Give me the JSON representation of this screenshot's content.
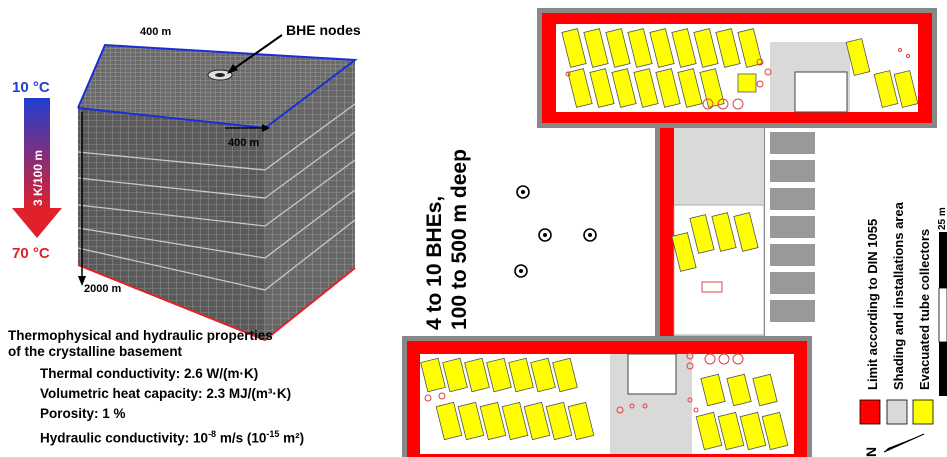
{
  "cube": {
    "top_width_label": "400 m",
    "side_width_label": "400 m",
    "depth_label": "2000 m",
    "bhe_label": "BHE nodes"
  },
  "gradient": {
    "top_temp": "10 °C",
    "bottom_temp": "70 °C",
    "rate": "3 K/100 m",
    "top_color": "#1f3fd0",
    "bottom_color": "#e0202a"
  },
  "properties": {
    "heading_line1": "Thermophysical and hydraulic properties",
    "heading_line2": "of the crystalline basement",
    "items": [
      {
        "label": "Thermal conductivity: ",
        "value": "2.6 W/(m·K)"
      },
      {
        "label": "Volumetric heat capacity: ",
        "value": "2.3 MJ/(m³·K)"
      },
      {
        "label": "Porosity: ",
        "value": "1 %"
      }
    ],
    "hydraulic": {
      "label": "Hydraulic conductivity: ",
      "v1": "10",
      "e1": "-8",
      "u1": " m/s (10",
      "e2": "-15",
      "u2": " m²)"
    }
  },
  "bhe_text": {
    "line1": "4 to 10 BHEs,",
    "line2": "100 to 500 m deep"
  },
  "legend": {
    "items": [
      {
        "label": "Limit according to DIN 1055",
        "color": "#ff0000"
      },
      {
        "label": "Shading and installations area",
        "color": "#d9d9d9"
      },
      {
        "label": "Evacuated tube collectors",
        "color": "#ffff00"
      }
    ],
    "scale_label": "25 m",
    "north_label": "N"
  }
}
